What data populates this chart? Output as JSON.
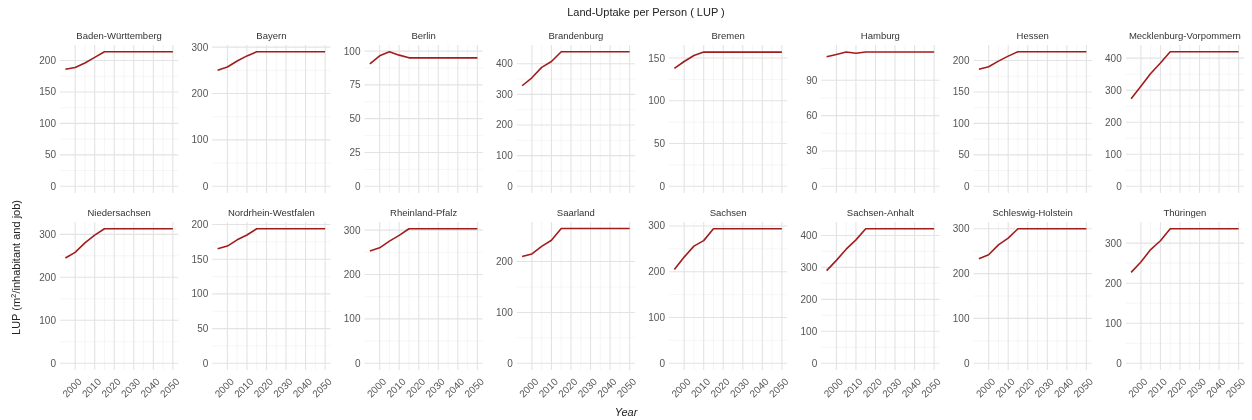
{
  "chart_data": [
    {
      "type": "line",
      "title": "Baden-Württemberg",
      "annotations": [
        "Land-Uptake per Person ( LUP )"
      ],
      "x": [
        1995,
        2000,
        2005,
        2010,
        2015,
        2020,
        2025,
        2030,
        2035,
        2040,
        2045,
        2050
      ],
      "series": [
        {
          "color": "#a11d1d",
          "values": [
            186,
            189,
            196,
            205,
            214,
            214,
            214,
            214,
            214,
            214,
            214,
            214
          ]
        }
      ],
      "xlim": [
        1992.25,
        2052.75
      ],
      "xticks": [
        2000,
        2010,
        2020,
        2030,
        2040,
        2050
      ],
      "ylim": [
        -10.7,
        224.7
      ],
      "yticks": [
        0,
        50,
        100,
        150,
        200
      ],
      "grid": true,
      "tick_labels": "y"
    },
    {
      "type": "line",
      "title": "Bayern",
      "x": [
        1995,
        2000,
        2005,
        2010,
        2015,
        2020,
        2025,
        2030,
        2035,
        2040,
        2045,
        2050
      ],
      "series": [
        {
          "color": "#a11d1d",
          "values": [
            250,
            257,
            270,
            281,
            290,
            290,
            290,
            290,
            290,
            290,
            290,
            290
          ]
        }
      ],
      "xlim": [
        1992.25,
        2052.75
      ],
      "xticks": [
        2000,
        2010,
        2020,
        2030,
        2040,
        2050
      ],
      "ylim": [
        -14.5,
        304.5
      ],
      "yticks": [
        0,
        100,
        200,
        300
      ],
      "grid": true,
      "tick_labels": "y"
    },
    {
      "type": "line",
      "title": "Berlin",
      "x": [
        1995,
        2000,
        2005,
        2010,
        2015,
        2020,
        2025,
        2030,
        2035,
        2040,
        2045,
        2050
      ],
      "series": [
        {
          "color": "#a11d1d",
          "values": [
            90.5,
            96.5,
            99.5,
            97,
            95,
            95,
            95,
            95,
            95,
            95,
            95,
            95
          ]
        }
      ],
      "xlim": [
        1992.25,
        2052.75
      ],
      "xticks": [
        2000,
        2010,
        2020,
        2030,
        2040,
        2050
      ],
      "ylim": [
        -5,
        104.5
      ],
      "yticks": [
        0,
        25,
        50,
        75,
        100
      ],
      "grid": true,
      "tick_labels": "y"
    },
    {
      "type": "line",
      "title": "Brandenburg",
      "x": [
        1995,
        2000,
        2005,
        2010,
        2015,
        2020,
        2025,
        2030,
        2035,
        2040,
        2045,
        2050
      ],
      "series": [
        {
          "color": "#a11d1d",
          "values": [
            328,
            354,
            388,
            407,
            439,
            439,
            439,
            439,
            439,
            439,
            439,
            439
          ]
        }
      ],
      "xlim": [
        1992.25,
        2052.75
      ],
      "xticks": [
        2000,
        2010,
        2020,
        2030,
        2040,
        2050
      ],
      "ylim": [
        -22,
        461
      ],
      "yticks": [
        0,
        100,
        200,
        300,
        400
      ],
      "grid": true,
      "tick_labels": "y"
    },
    {
      "type": "line",
      "title": "Bremen",
      "x": [
        1995,
        2000,
        2005,
        2010,
        2015,
        2020,
        2025,
        2030,
        2035,
        2040,
        2045,
        2050
      ],
      "series": [
        {
          "color": "#a11d1d",
          "values": [
            138,
            146,
            153,
            157,
            157,
            157,
            157,
            157,
            157,
            157,
            157,
            157
          ]
        }
      ],
      "xlim": [
        1992.25,
        2052.75
      ],
      "xticks": [
        2000,
        2010,
        2020,
        2030,
        2040,
        2050
      ],
      "ylim": [
        -7.9,
        165.3
      ],
      "yticks": [
        0,
        50,
        100,
        150
      ],
      "grid": true,
      "tick_labels": "y"
    },
    {
      "type": "line",
      "title": "Hamburg",
      "x": [
        1995,
        2000,
        2005,
        2010,
        2015,
        2020,
        2025,
        2030,
        2035,
        2040,
        2045,
        2050
      ],
      "series": [
        {
          "color": "#a11d1d",
          "values": [
            110,
            112,
            114,
            113,
            114,
            114,
            114,
            114,
            114,
            114,
            114,
            114
          ]
        }
      ],
      "xlim": [
        1992.25,
        2052.75
      ],
      "xticks": [
        2000,
        2010,
        2020,
        2030,
        2040,
        2050
      ],
      "ylim": [
        -5.7,
        120
      ],
      "yticks": [
        0,
        30,
        60,
        90
      ],
      "grid": true,
      "tick_labels": "y"
    },
    {
      "type": "line",
      "title": "Hessen",
      "x": [
        1995,
        2000,
        2005,
        2010,
        2015,
        2020,
        2025,
        2030,
        2035,
        2040,
        2045,
        2050
      ],
      "series": [
        {
          "color": "#a11d1d",
          "values": [
            186,
            190,
            199,
            207,
            214,
            214,
            214,
            214,
            214,
            214,
            214,
            214
          ]
        }
      ],
      "xlim": [
        1992.25,
        2052.75
      ],
      "xticks": [
        2000,
        2010,
        2020,
        2030,
        2040,
        2050
      ],
      "ylim": [
        -10.7,
        224.7
      ],
      "yticks": [
        0,
        50,
        100,
        150,
        200
      ],
      "grid": true,
      "tick_labels": "y"
    },
    {
      "type": "line",
      "title": "Mecklenburg-Vorpommern",
      "x": [
        1995,
        2000,
        2005,
        2010,
        2015,
        2020,
        2025,
        2030,
        2035,
        2040,
        2045,
        2050
      ],
      "series": [
        {
          "color": "#a11d1d",
          "values": [
            273,
            312,
            352,
            385,
            420,
            420,
            420,
            420,
            420,
            420,
            420,
            420
          ]
        }
      ],
      "xlim": [
        1992.25,
        2052.75
      ],
      "xticks": [
        2000,
        2010,
        2020,
        2030,
        2040,
        2050
      ],
      "ylim": [
        -21,
        441
      ],
      "yticks": [
        0,
        100,
        200,
        300,
        400
      ],
      "grid": true,
      "tick_labels": "y"
    },
    {
      "type": "line",
      "title": "Niedersachsen",
      "ylabel": "LUP (m$^{2}$/inhabitant and job)",
      "x": [
        1995,
        2000,
        2005,
        2010,
        2015,
        2020,
        2025,
        2030,
        2035,
        2040,
        2045,
        2050
      ],
      "series": [
        {
          "color": "#a11d1d",
          "values": [
            245,
            258,
            280,
            298,
            313,
            313,
            313,
            313,
            313,
            313,
            313,
            313
          ]
        }
      ],
      "xlim": [
        1992.25,
        2052.75
      ],
      "xticks": [
        2000,
        2010,
        2020,
        2030,
        2040,
        2050
      ],
      "ylim": [
        -15.7,
        328.7
      ],
      "yticks": [
        0,
        100,
        200,
        300
      ],
      "grid": true
    },
    {
      "type": "line",
      "title": "Nordrhein-Westfalen",
      "x": [
        1995,
        2000,
        2005,
        2010,
        2015,
        2020,
        2025,
        2030,
        2035,
        2040,
        2045,
        2050
      ],
      "series": [
        {
          "color": "#a11d1d",
          "values": [
            165,
            169,
            178,
            185,
            194,
            194,
            194,
            194,
            194,
            194,
            194,
            194
          ]
        }
      ],
      "xlim": [
        1992.25,
        2052.75
      ],
      "xticks": [
        2000,
        2010,
        2020,
        2030,
        2040,
        2050
      ],
      "ylim": [
        -9.7,
        203.7
      ],
      "yticks": [
        0,
        50,
        100,
        150,
        200
      ],
      "grid": true
    },
    {
      "type": "line",
      "title": "Rheinland-Pfalz",
      "x": [
        1995,
        2000,
        2005,
        2010,
        2015,
        2020,
        2025,
        2030,
        2035,
        2040,
        2045,
        2050
      ],
      "series": [
        {
          "color": "#a11d1d",
          "values": [
            253,
            260,
            275,
            288,
            303,
            303,
            303,
            303,
            303,
            303,
            303,
            303
          ]
        }
      ],
      "xlim": [
        1992.25,
        2052.75
      ],
      "xticks": [
        2000,
        2010,
        2020,
        2030,
        2040,
        2050
      ],
      "ylim": [
        -15.2,
        318.2
      ],
      "yticks": [
        0,
        100,
        200,
        300
      ],
      "grid": true
    },
    {
      "type": "line",
      "title": "Saarland",
      "xlabel": "Year",
      "x": [
        1995,
        2000,
        2005,
        2010,
        2015,
        2020,
        2025,
        2030,
        2035,
        2040,
        2045,
        2050
      ],
      "series": [
        {
          "color": "#a11d1d",
          "values": [
            210,
            215,
            230,
            242,
            265,
            265,
            265,
            265,
            265,
            265,
            265,
            265
          ]
        }
      ],
      "xlim": [
        1992.25,
        2052.75
      ],
      "xticks": [
        2000,
        2010,
        2020,
        2030,
        2040,
        2050
      ],
      "ylim": [
        -13.2,
        277.8
      ],
      "yticks": [
        0,
        100,
        200
      ],
      "grid": true
    },
    {
      "type": "line",
      "title": "Sachsen",
      "x": [
        1995,
        2000,
        2005,
        2010,
        2015,
        2020,
        2025,
        2030,
        2035,
        2040,
        2045,
        2050
      ],
      "series": [
        {
          "color": "#a11d1d",
          "values": [
            205,
            232,
            256,
            268,
            294,
            294,
            294,
            294,
            294,
            294,
            294,
            294
          ]
        }
      ],
      "xlim": [
        1992.25,
        2052.75
      ],
      "xticks": [
        2000,
        2010,
        2020,
        2030,
        2040,
        2050
      ],
      "ylim": [
        -14.7,
        308.7
      ],
      "yticks": [
        0,
        100,
        200,
        300
      ],
      "grid": true
    },
    {
      "type": "line",
      "title": "Sachsen-Anhalt",
      "x": [
        1995,
        2000,
        2005,
        2010,
        2015,
        2020,
        2025,
        2030,
        2035,
        2040,
        2045,
        2050
      ],
      "series": [
        {
          "color": "#a11d1d",
          "values": [
            290,
            322,
            357,
            386,
            421,
            421,
            421,
            421,
            421,
            421,
            421,
            421
          ]
        }
      ],
      "xlim": [
        1992.25,
        2052.75
      ],
      "xticks": [
        2000,
        2010,
        2020,
        2030,
        2040,
        2050
      ],
      "ylim": [
        -21,
        442
      ],
      "yticks": [
        0,
        100,
        200,
        300,
        400
      ],
      "grid": true
    },
    {
      "type": "line",
      "title": "Schleswig-Holstein",
      "x": [
        1995,
        2000,
        2005,
        2010,
        2015,
        2020,
        2025,
        2030,
        2035,
        2040,
        2045,
        2050
      ],
      "series": [
        {
          "color": "#a11d1d",
          "values": [
            233,
            242,
            264,
            279,
            300,
            300,
            300,
            300,
            300,
            300,
            300,
            300
          ]
        }
      ],
      "xlim": [
        1992.25,
        2052.75
      ],
      "xticks": [
        2000,
        2010,
        2020,
        2030,
        2040,
        2050
      ],
      "ylim": [
        -15,
        315
      ],
      "yticks": [
        0,
        100,
        200,
        300
      ],
      "grid": true
    },
    {
      "type": "line",
      "title": "Thüringen",
      "x": [
        1995,
        2000,
        2005,
        2010,
        2015,
        2020,
        2025,
        2030,
        2035,
        2040,
        2045,
        2050
      ],
      "series": [
        {
          "color": "#a11d1d",
          "values": [
            227,
            253,
            284,
            306,
            336,
            336,
            336,
            336,
            336,
            336,
            336,
            336
          ]
        }
      ],
      "xlim": [
        1992.25,
        2052.75
      ],
      "xticks": [
        2000,
        2010,
        2020,
        2030,
        2040,
        2050
      ],
      "ylim": [
        -16.8,
        352.8
      ],
      "yticks": [
        0,
        100,
        200,
        300
      ],
      "grid": true
    }
  ]
}
